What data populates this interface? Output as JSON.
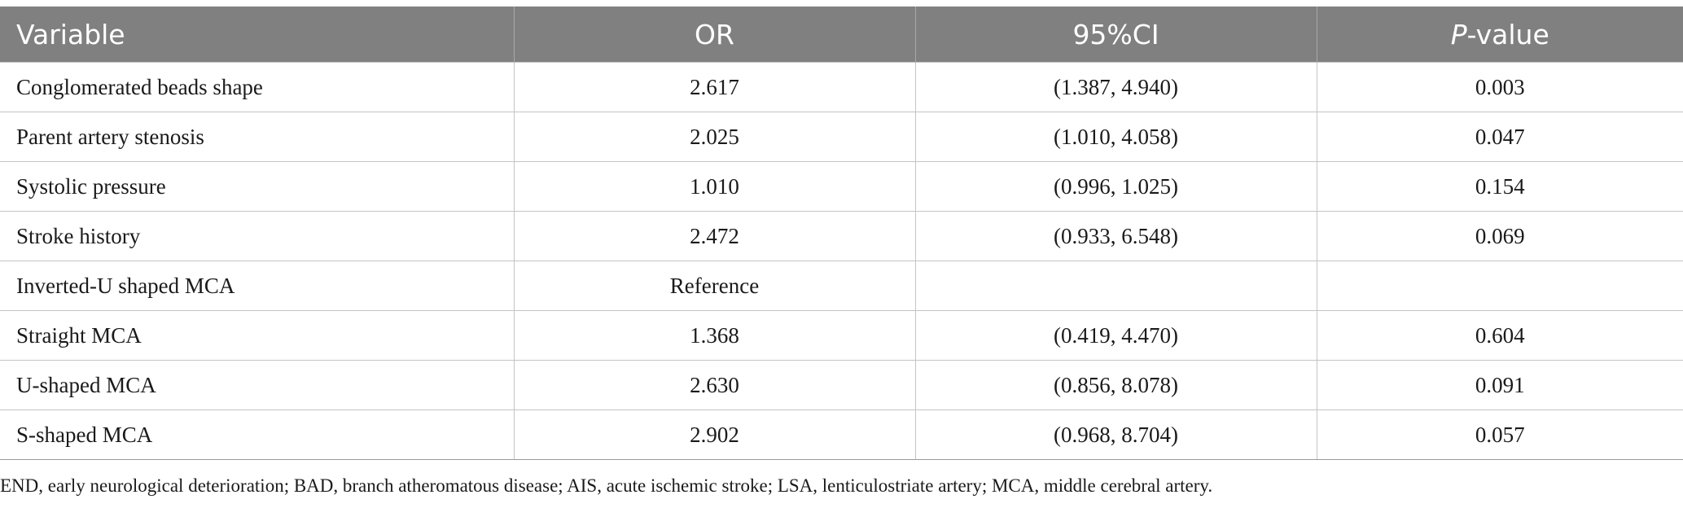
{
  "table": {
    "headers": {
      "variable": "Variable",
      "or": "OR",
      "ci": "95%CI",
      "p_italic": "P",
      "p_rest": "-value"
    },
    "rows": [
      {
        "variable": "Conglomerated beads shape",
        "or": "2.617",
        "ci": "(1.387, 4.940)",
        "p": "0.003"
      },
      {
        "variable": "Parent artery stenosis",
        "or": "2.025",
        "ci": "(1.010, 4.058)",
        "p": "0.047"
      },
      {
        "variable": "Systolic pressure",
        "or": "1.010",
        "ci": "(0.996, 1.025)",
        "p": "0.154"
      },
      {
        "variable": "Stroke history",
        "or": "2.472",
        "ci": "(0.933, 6.548)",
        "p": "0.069"
      },
      {
        "variable": "Inverted-U shaped MCA",
        "or": "Reference",
        "ci": "",
        "p": ""
      },
      {
        "variable": "Straight MCA",
        "or": "1.368",
        "ci": "(0.419, 4.470)",
        "p": "0.604"
      },
      {
        "variable": "U-shaped MCA",
        "or": "2.630",
        "ci": "(0.856, 8.078)",
        "p": "0.091"
      },
      {
        "variable": "S-shaped MCA",
        "or": "2.902",
        "ci": "(0.968, 8.704)",
        "p": "0.057"
      }
    ]
  },
  "footnote": "END, early neurological deterioration; BAD, branch atheromatous disease; AIS, acute ischemic stroke; LSA, lenticulostriate artery; MCA, middle cerebral artery."
}
